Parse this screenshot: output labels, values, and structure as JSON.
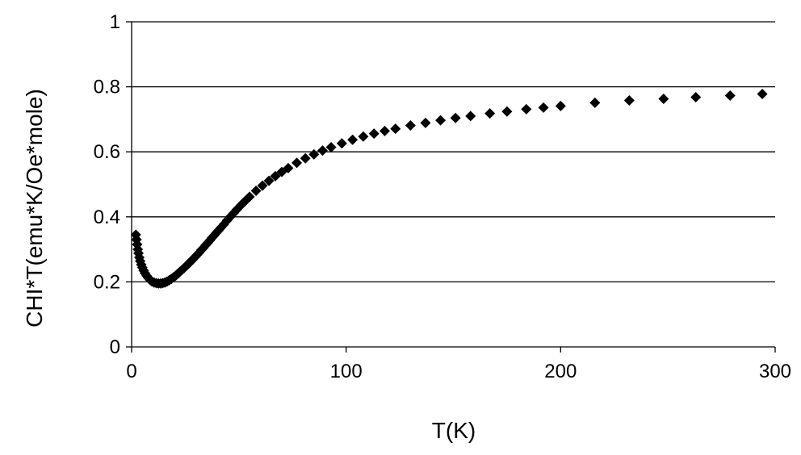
{
  "chart_data": {
    "type": "scatter",
    "title": "",
    "xlabel": "T(K)",
    "ylabel": "CHI*T(emu*K/Oe*mole)",
    "xlim": [
      0,
      300
    ],
    "ylim": [
      0,
      1
    ],
    "x_ticks": [
      "0",
      "100",
      "200",
      "300"
    ],
    "y_ticks": [
      "0",
      "0.2",
      "0.4",
      "0.6",
      "0.8",
      "1"
    ],
    "grid": "horizontal",
    "legend": "none",
    "marker": "diamond",
    "marker_color": "#000000",
    "series": [
      {
        "points": [
          [
            2.0,
            0.345
          ],
          [
            2.3,
            0.33
          ],
          [
            2.6,
            0.315
          ],
          [
            2.9,
            0.3
          ],
          [
            3.2,
            0.288
          ],
          [
            3.6,
            0.275
          ],
          [
            4.0,
            0.264
          ],
          [
            4.5,
            0.253
          ],
          [
            5.0,
            0.244
          ],
          [
            5.6,
            0.235
          ],
          [
            6.2,
            0.227
          ],
          [
            7.0,
            0.219
          ],
          [
            7.8,
            0.212
          ],
          [
            8.6,
            0.206
          ],
          [
            9.5,
            0.201
          ],
          [
            10.5,
            0.198
          ],
          [
            11.5,
            0.196
          ],
          [
            12.5,
            0.195
          ],
          [
            13.5,
            0.195
          ],
          [
            14.5,
            0.196
          ],
          [
            15.5,
            0.198
          ],
          [
            16.5,
            0.201
          ],
          [
            17.5,
            0.205
          ],
          [
            18.5,
            0.209
          ],
          [
            19.5,
            0.214
          ],
          [
            20.5,
            0.219
          ],
          [
            21.5,
            0.225
          ],
          [
            22.5,
            0.231
          ],
          [
            23.5,
            0.237
          ],
          [
            24.5,
            0.243
          ],
          [
            25.5,
            0.249
          ],
          [
            26.5,
            0.256
          ],
          [
            27.5,
            0.262
          ],
          [
            28.5,
            0.269
          ],
          [
            29.5,
            0.276
          ],
          [
            30.5,
            0.283
          ],
          [
            31.5,
            0.29
          ],
          [
            32.5,
            0.298
          ],
          [
            33.5,
            0.305
          ],
          [
            34.5,
            0.313
          ],
          [
            35.5,
            0.32
          ],
          [
            36.5,
            0.328
          ],
          [
            37.5,
            0.336
          ],
          [
            38.5,
            0.343
          ],
          [
            39.5,
            0.351
          ],
          [
            40.5,
            0.358
          ],
          [
            41.5,
            0.366
          ],
          [
            43.0,
            0.377
          ],
          [
            44.5,
            0.389
          ],
          [
            46.0,
            0.4
          ],
          [
            47.5,
            0.411
          ],
          [
            49.0,
            0.422
          ],
          [
            51.0,
            0.436
          ],
          [
            53.0,
            0.449
          ],
          [
            55.0,
            0.462
          ],
          [
            58.0,
            0.48
          ],
          [
            61.0,
            0.496
          ],
          [
            64.0,
            0.511
          ],
          [
            67.0,
            0.525
          ],
          [
            70.0,
            0.538
          ],
          [
            73.0,
            0.55
          ],
          [
            77.0,
            0.566
          ],
          [
            81.0,
            0.58
          ],
          [
            85.0,
            0.592
          ],
          [
            89.0,
            0.604
          ],
          [
            93.0,
            0.614
          ],
          [
            98.0,
            0.626
          ],
          [
            103.0,
            0.637
          ],
          [
            108.0,
            0.647
          ],
          [
            113.0,
            0.656
          ],
          [
            118.0,
            0.664
          ],
          [
            123.0,
            0.671
          ],
          [
            130.0,
            0.681
          ],
          [
            137.0,
            0.689
          ],
          [
            144.0,
            0.697
          ],
          [
            151.0,
            0.704
          ],
          [
            158.0,
            0.71
          ],
          [
            167.0,
            0.718
          ],
          [
            175.0,
            0.724
          ],
          [
            184.0,
            0.731
          ],
          [
            192.0,
            0.736
          ],
          [
            200.0,
            0.741
          ],
          [
            216.0,
            0.751
          ],
          [
            232.0,
            0.758
          ],
          [
            248.0,
            0.763
          ],
          [
            263.0,
            0.768
          ],
          [
            279.0,
            0.773
          ],
          [
            294.0,
            0.778
          ]
        ]
      }
    ]
  }
}
